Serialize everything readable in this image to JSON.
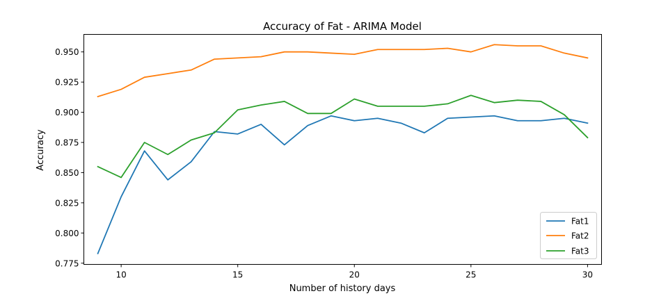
{
  "chart_data": {
    "type": "line",
    "title": "Accuracy of Fat - ARIMA Model",
    "xlabel": "Number of history days",
    "ylabel": "Accuracy",
    "xlim": [
      8.4,
      30.6
    ],
    "ylim": [
      0.774,
      0.9645
    ],
    "xticks": [
      10,
      15,
      20,
      25,
      30
    ],
    "yticks": [
      0.775,
      0.8,
      0.825,
      0.85,
      0.875,
      0.9,
      0.925,
      0.95
    ],
    "ytick_labels": [
      "0.775",
      "0.800",
      "0.825",
      "0.850",
      "0.875",
      "0.900",
      "0.925",
      "0.950"
    ],
    "grid": false,
    "legend_position": "lower-right",
    "x": [
      9,
      10,
      11,
      12,
      13,
      14,
      15,
      16,
      17,
      18,
      19,
      20,
      21,
      22,
      23,
      24,
      25,
      26,
      27,
      28,
      29,
      30
    ],
    "series": [
      {
        "name": "Fat1",
        "color": "#1f77b4",
        "values": [
          0.783,
          0.83,
          0.868,
          0.844,
          0.859,
          0.884,
          0.882,
          0.89,
          0.873,
          0.889,
          0.897,
          0.893,
          0.895,
          0.891,
          0.883,
          0.895,
          0.896,
          0.897,
          0.893,
          0.893,
          0.895,
          0.891
        ]
      },
      {
        "name": "Fat2",
        "color": "#ff7f0e",
        "values": [
          0.913,
          0.919,
          0.929,
          0.932,
          0.935,
          0.944,
          0.945,
          0.946,
          0.95,
          0.95,
          0.949,
          0.948,
          0.952,
          0.952,
          0.952,
          0.953,
          0.95,
          0.956,
          0.955,
          0.955,
          0.949,
          0.945
        ]
      },
      {
        "name": "Fat3",
        "color": "#2ca02c",
        "values": [
          0.855,
          0.846,
          0.875,
          0.865,
          0.877,
          0.883,
          0.902,
          0.906,
          0.909,
          0.899,
          0.899,
          0.911,
          0.905,
          0.905,
          0.905,
          0.907,
          0.914,
          0.908,
          0.91,
          0.909,
          0.898,
          0.879
        ]
      }
    ]
  }
}
